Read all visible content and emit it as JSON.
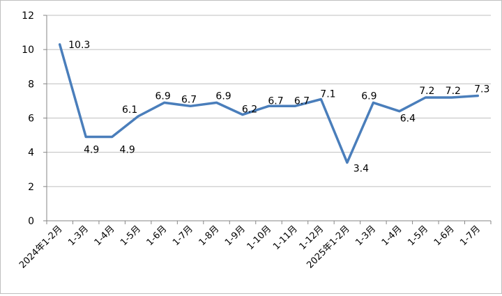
{
  "chart_data": {
    "type": "line",
    "categories": [
      "2024年1-2月",
      "1-3月",
      "1-4月",
      "1-5月",
      "1-6月",
      "1-7月",
      "1-8月",
      "1-9月",
      "1-10月",
      "1-11月",
      "1-12月",
      "2025年1-2月",
      "1-3月",
      "1-4月",
      "1-5月",
      "1-6月",
      "1-7月"
    ],
    "series": [
      {
        "values": [
          10.3,
          4.9,
          4.9,
          6.1,
          6.9,
          6.7,
          6.9,
          6.2,
          6.7,
          6.7,
          7.1,
          3.4,
          6.9,
          6.4,
          7.2,
          7.2,
          7.3
        ]
      }
    ],
    "data_labels": [
      "10.3",
      "4.9",
      "4.9",
      "6.1",
      "6.9",
      "6.7",
      "6.9",
      "6.2",
      "6.7",
      "6.7",
      "7.1",
      "3.4",
      "6.9",
      "6.4",
      "7.2",
      "7.2",
      "7.3"
    ],
    "y_ticks": [
      "0",
      "2",
      "4",
      "6",
      "8",
      "10",
      "12"
    ],
    "ylim": [
      0,
      12
    ],
    "grid": true,
    "legend": "none",
    "colors": {
      "line": "#4a7ebb",
      "grid": "#bfbfbf",
      "axis": "#868686"
    }
  }
}
